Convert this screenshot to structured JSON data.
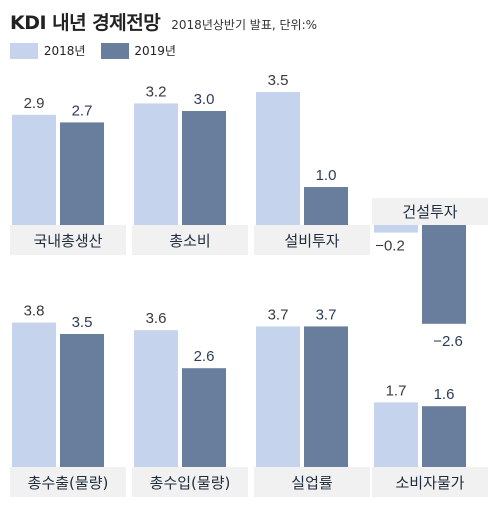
{
  "header": {
    "title": "KDI 내년 경제전망",
    "subtitle": "2018년상반기 발표, 단위:%"
  },
  "legend": [
    {
      "label": "2018년",
      "color": "#c5d4ec"
    },
    {
      "label": "2019년",
      "color": "#687e9c"
    }
  ],
  "colors": {
    "series_2018": "#c5d4ec",
    "series_2019": "#687e9c",
    "panel_bg": "#f1f1f1",
    "label_text": "#1f2d3d",
    "value_text": "#3a3a3a",
    "value_text_dark": "#2d3d58"
  },
  "chart_data": {
    "type": "bar",
    "series": [
      {
        "name": "2018년",
        "color": "#c5d4ec"
      },
      {
        "name": "2019년",
        "color": "#687e9c"
      }
    ],
    "panels": [
      {
        "label": "국내총생산",
        "values": [
          2.9,
          2.7
        ],
        "labels": [
          "2.9",
          "2.7"
        ]
      },
      {
        "label": "총소비",
        "values": [
          3.2,
          3.0
        ],
        "labels": [
          "3.2",
          "3.0"
        ]
      },
      {
        "label": "설비투자",
        "values": [
          3.5,
          1.0
        ],
        "labels": [
          "3.5",
          "1.0"
        ]
      },
      {
        "label": "건설투자",
        "values": [
          -0.2,
          -2.6
        ],
        "labels": [
          "−0.2",
          "−2.6"
        ]
      },
      {
        "label": "총수출(물량)",
        "values": [
          3.8,
          3.5
        ],
        "labels": [
          "3.8",
          "3.5"
        ]
      },
      {
        "label": "총수입(물량)",
        "values": [
          3.6,
          2.6
        ],
        "labels": [
          "3.6",
          "2.6"
        ]
      },
      {
        "label": "실업률",
        "values": [
          3.7,
          3.7
        ],
        "labels": [
          "3.7",
          "3.7"
        ]
      },
      {
        "label": "소비자물가",
        "values": [
          1.7,
          1.6
        ],
        "labels": [
          "1.7",
          "1.6"
        ]
      }
    ]
  }
}
